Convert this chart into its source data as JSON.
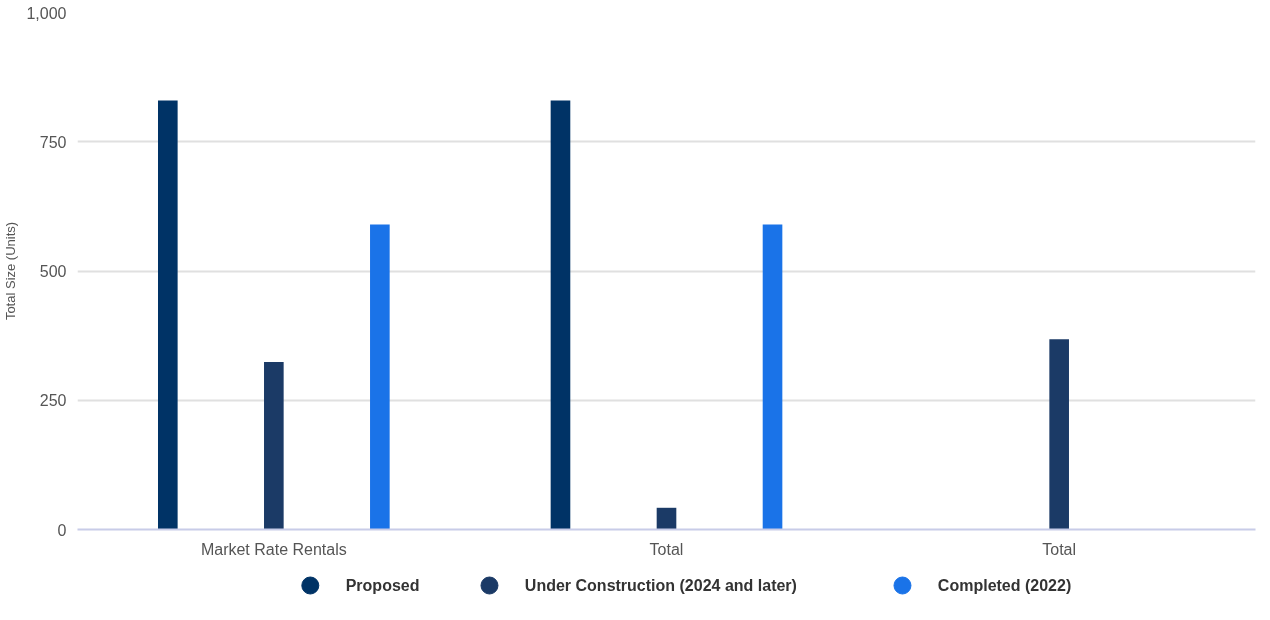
{
  "chart_data": {
    "type": "bar",
    "ylabel": "Total Size (Units)",
    "categories": [
      "Market Rate Rentals",
      "Total",
      "Total"
    ],
    "series": [
      {
        "name": "Proposed",
        "color": "#003366",
        "values": [
          830,
          830,
          null
        ]
      },
      {
        "name": "Under Construction (2024 and later)",
        "color": "#1b3a66",
        "values": [
          324,
          42,
          368
        ]
      },
      {
        "name": "Completed (2022)",
        "color": "#1a73e8",
        "values": [
          590,
          590,
          null
        ]
      }
    ],
    "ylim": [
      0,
      1000
    ],
    "yticks": [
      0,
      {
        "value": 250,
        "label": "250"
      },
      {
        "value": 500,
        "label": "500"
      },
      {
        "value": 750,
        "label": "750"
      },
      {
        "value": 1000,
        "label": "1,000"
      }
    ],
    "grid": "y",
    "legend": "bottom"
  }
}
